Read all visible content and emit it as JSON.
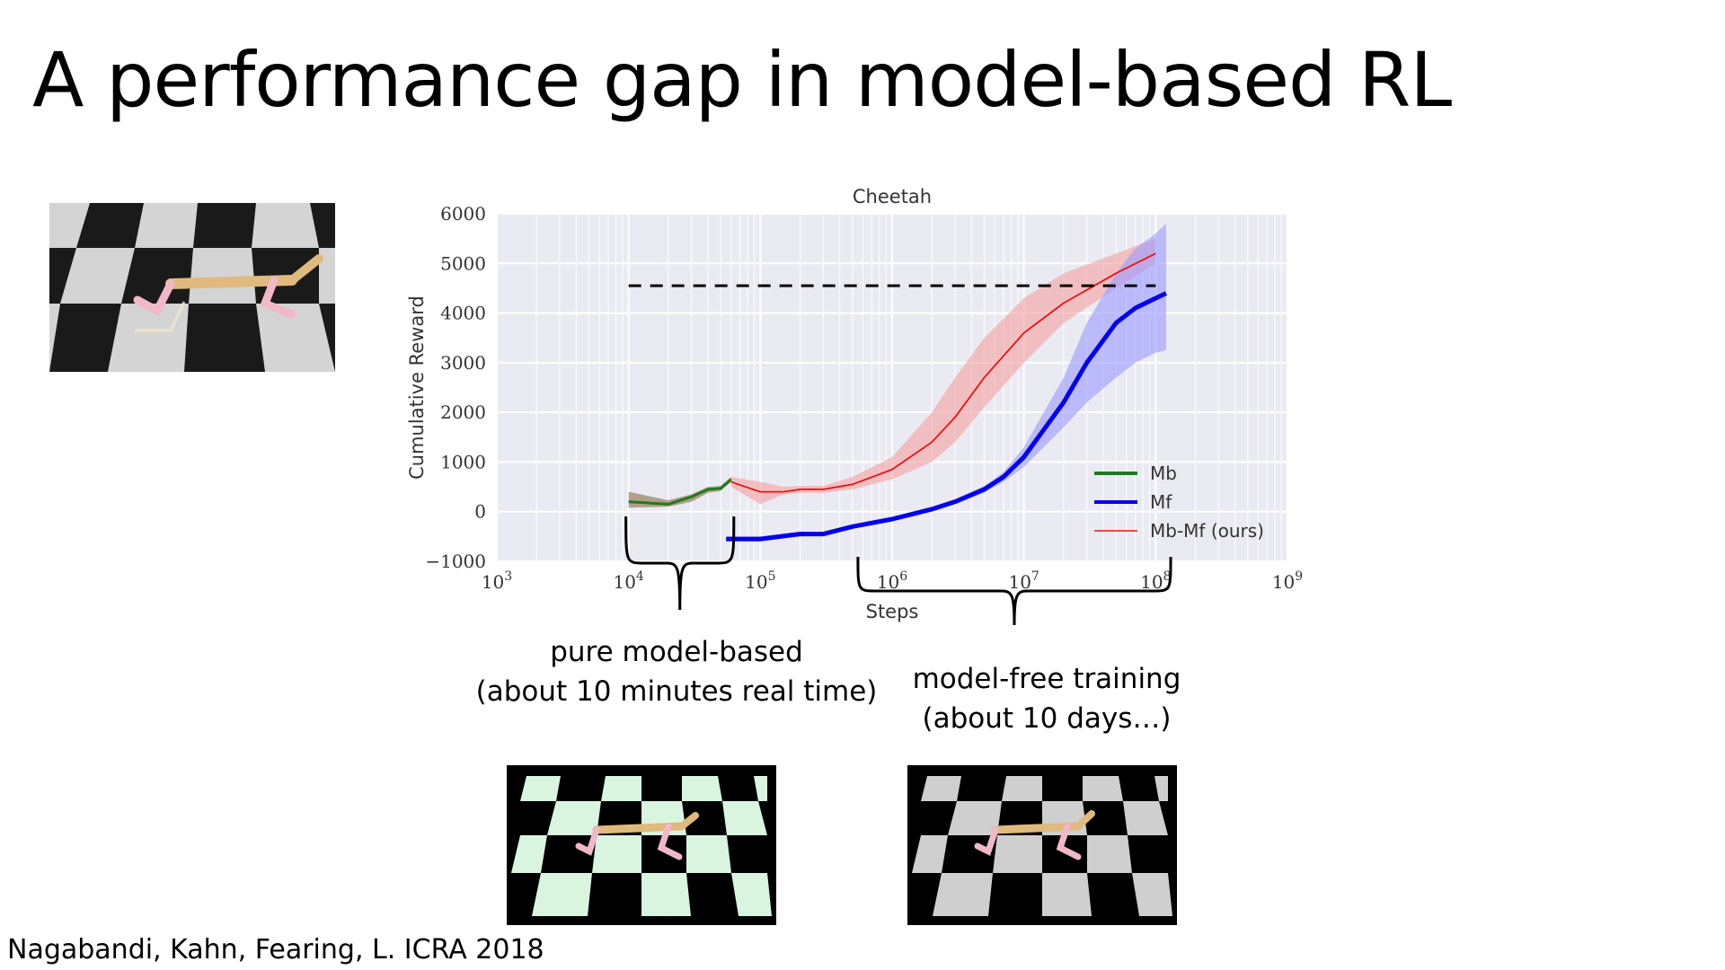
{
  "slide": {
    "title": "A performance gap in model-based RL",
    "citation": "Nagabandi, Kahn, Fearing, L. ICRA 2018",
    "caption_left": [
      "pure model-based",
      "(about 10 minutes real time)"
    ],
    "caption_right": [
      "model-free training",
      "(about 10 days…)"
    ]
  },
  "images": {
    "top_left": "cheetah-render-gray-checkerboard",
    "bottom_left": "cheetah-render-green-checkerboard",
    "bottom_right": "cheetah-render-gray-checkerboard"
  },
  "chart_data": {
    "type": "line",
    "title": "Cheetah",
    "xlabel": "Steps",
    "ylabel": "Cumulative Reward",
    "xscale": "log",
    "xlim": [
      1000,
      1000000000
    ],
    "ylim": [
      -1000,
      6000
    ],
    "xticks": [
      "10^3",
      "10^4",
      "10^5",
      "10^6",
      "10^7",
      "10^8",
      "10^9"
    ],
    "yticks": [
      "6000",
      "5000",
      "4000",
      "3000",
      "2000",
      "1000",
      "0",
      "−1000"
    ],
    "grid": true,
    "legend_position": "lower-right",
    "reference_line": {
      "y": 4550,
      "x_start": 10000,
      "x_end": 100000000,
      "style": "dashed"
    },
    "series": [
      {
        "name": "Mb",
        "color": "#1f7a1f",
        "band_color": "#8a6a40",
        "x": [
          10000,
          20000,
          30000,
          40000,
          50000,
          60000
        ],
        "y": [
          200,
          150,
          300,
          450,
          470,
          650
        ],
        "lower": [
          80,
          100,
          200,
          380,
          420,
          600
        ],
        "upper": [
          400,
          230,
          350,
          500,
          520,
          700
        ]
      },
      {
        "name": "Mf",
        "color": "#0000ee",
        "band_color": "#9999ff",
        "x": [
          55000,
          100000,
          200000,
          300000,
          500000,
          1000000,
          2000000,
          3000000,
          5000000,
          7000000,
          10000000,
          20000000,
          30000000,
          50000000,
          70000000,
          100000000,
          120000000
        ],
        "y": [
          -550,
          -550,
          -450,
          -450,
          -300,
          -150,
          50,
          200,
          450,
          700,
          1100,
          2200,
          3000,
          3800,
          4100,
          4300,
          4400
        ],
        "lower": [
          -600,
          -600,
          -500,
          -480,
          -330,
          -180,
          0,
          150,
          380,
          600,
          900,
          1700,
          2200,
          2700,
          3000,
          3200,
          3250
        ],
        "upper": [
          -500,
          -500,
          -400,
          -420,
          -270,
          -120,
          100,
          250,
          520,
          800,
          1300,
          2700,
          3800,
          4800,
          5300,
          5600,
          5800
        ]
      },
      {
        "name": "Mb-Mf (ours)",
        "color": "#ee1111",
        "band_color": "#f4a0a0",
        "x": [
          60000,
          100000,
          150000,
          200000,
          300000,
          500000,
          1000000,
          2000000,
          3000000,
          5000000,
          10000000,
          20000000,
          50000000,
          100000000
        ],
        "y": [
          600,
          400,
          400,
          450,
          450,
          550,
          850,
          1400,
          1900,
          2700,
          3600,
          4200,
          4800,
          5200
        ],
        "lower": [
          500,
          150,
          350,
          380,
          380,
          450,
          650,
          1000,
          1400,
          2100,
          3000,
          3800,
          4500,
          5000
        ],
        "upper": [
          700,
          600,
          500,
          520,
          520,
          700,
          1100,
          2000,
          2700,
          3500,
          4300,
          4800,
          5200,
          5500
        ]
      }
    ]
  }
}
